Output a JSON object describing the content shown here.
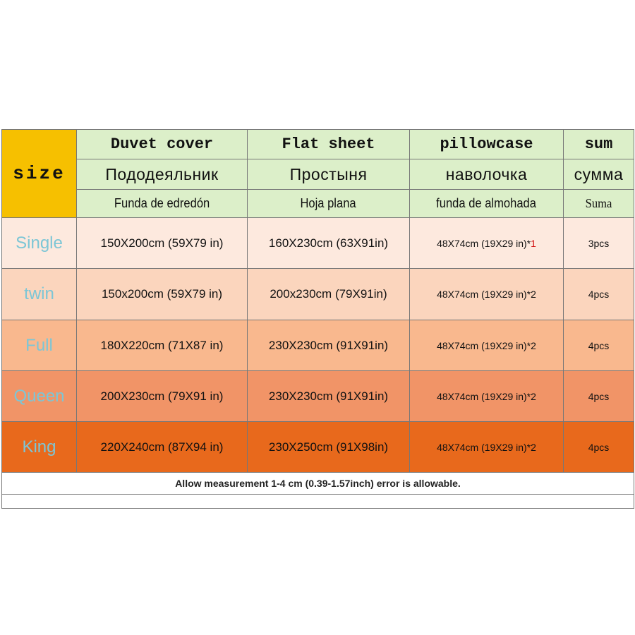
{
  "header": {
    "size": "size",
    "columns": [
      {
        "en": "Duvet cover",
        "ru": "Пододеяльник",
        "es": "Funda de edredón"
      },
      {
        "en": "Flat sheet",
        "ru": "Простыня",
        "es": "Hoja plana"
      },
      {
        "en": "pillowcase",
        "ru": "наволочка",
        "es": "funda de almohada"
      },
      {
        "en": "sum",
        "ru": "сумма",
        "es": "Suma"
      }
    ]
  },
  "rows": [
    {
      "size": "Single",
      "duvet": "150X200cm (59X79 in)",
      "flat": "160X230cm (63X91in)",
      "pillow": "48X74cm (19X29 in)*",
      "count": "1",
      "count_color": "#d01010",
      "sum": "3pcs",
      "color": "#fde9de"
    },
    {
      "size": "twin",
      "duvet": "150x200cm (59X79 in)",
      "flat": "200x230cm (79X91in)",
      "pillow": "48X74cm (19X29 in)*",
      "count": "2",
      "count_color": "#111111",
      "sum": "4pcs",
      "color": "#fbd5bd"
    },
    {
      "size": "Full",
      "duvet": "180X220cm (71X87 in)",
      "flat": "230X230cm (91X91in)",
      "pillow": "48X74cm (19X29 in)*",
      "count": "2",
      "count_color": "#111111",
      "sum": "4pcs",
      "color": "#f9b88e"
    },
    {
      "size": "Queen",
      "duvet": "200X230cm (79X91 in)",
      "flat": "230X230cm (91X91in)",
      "pillow": "48X74cm (19X29 in)*",
      "count": "2",
      "count_color": "#111111",
      "sum": "4pcs",
      "color": "#f19467"
    },
    {
      "size": "King",
      "duvet": "220X240cm (87X94 in)",
      "flat": "230X250cm (91X98in)",
      "pillow": "48X74cm (19X29 in)*",
      "count": "2",
      "count_color": "#111111",
      "sum": "4pcs",
      "color": "#e8691c"
    }
  ],
  "footer": "Allow measurement 1-4 cm (0.39-1.57inch) error is allowable."
}
